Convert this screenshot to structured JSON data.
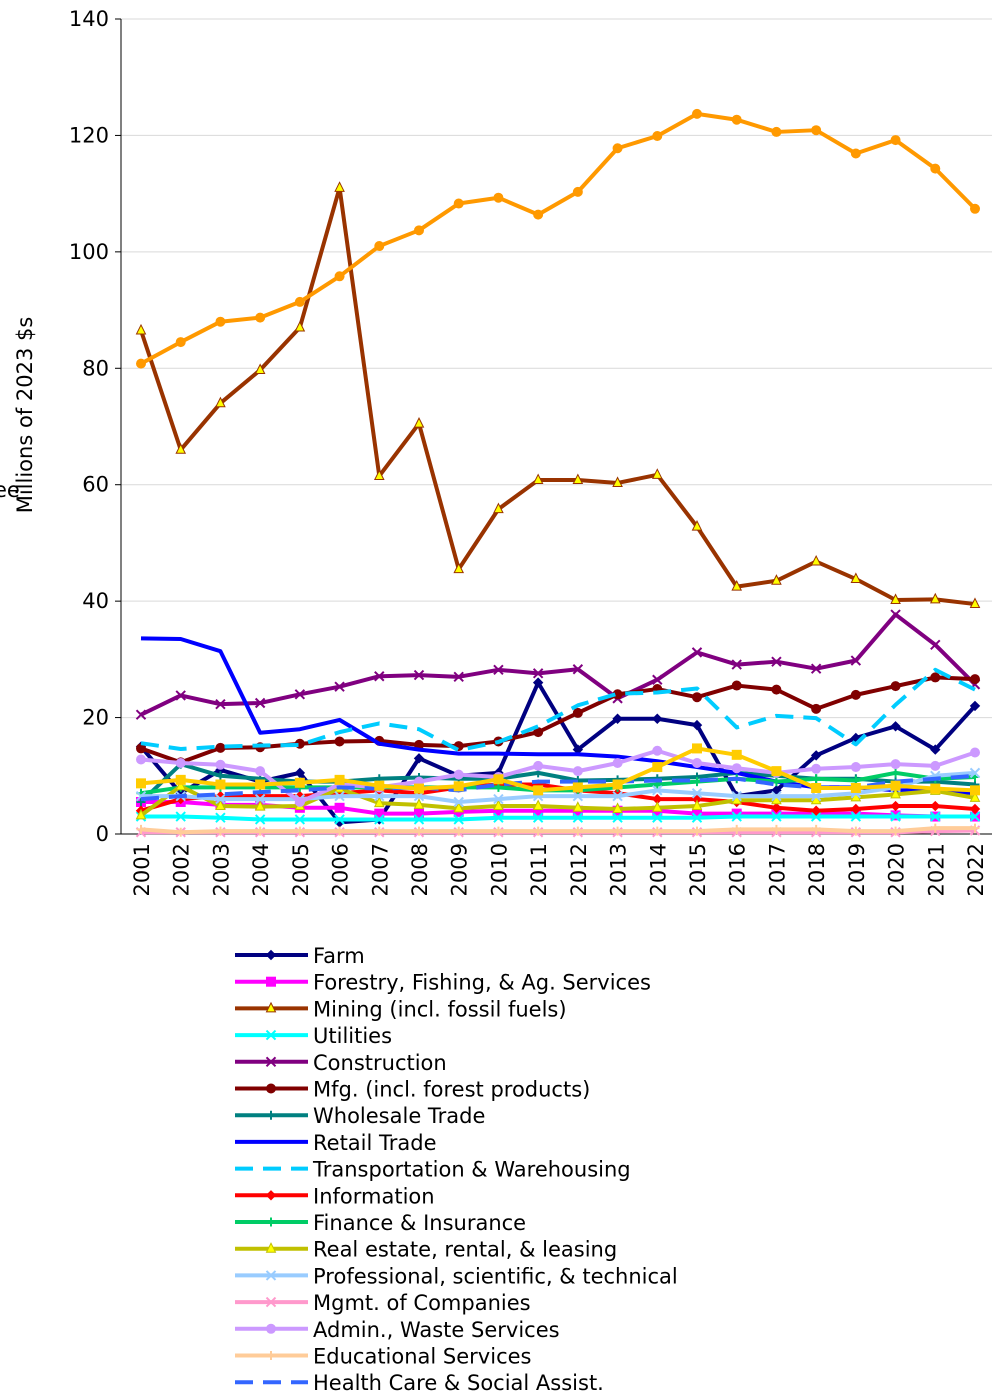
{
  "chart_data": {
    "type": "line",
    "y_label": "Millions of 2023 $s",
    "annotation": "ee",
    "categories": [
      "2001",
      "2002",
      "2003",
      "2004",
      "2005",
      "2006",
      "2007",
      "2008",
      "2009",
      "2010",
      "2011",
      "2012",
      "2013",
      "2014",
      "2015",
      "2016",
      "2017",
      "2018",
      "2019",
      "2020",
      "2021",
      "2022"
    ],
    "ylim": [
      0,
      140
    ],
    "yticks": [
      0,
      20,
      40,
      60,
      80,
      100,
      120,
      140
    ],
    "grid": true,
    "series": [
      {
        "name": "Farm",
        "color": "#000080",
        "marker": "diamond",
        "values": [
          15,
          7,
          11,
          9,
          10.5,
          2,
          2.5,
          13,
          10,
          10.5,
          26,
          14.5,
          19.8,
          19.8,
          18.7,
          6.5,
          7.5,
          13.5,
          16.5,
          18.5,
          14.5,
          22
        ]
      },
      {
        "name": "Forestry, Fishing, & Ag. Services",
        "color": "#ff00ff",
        "marker": "square",
        "values": [
          5.5,
          5.5,
          5,
          5,
          4.5,
          4.5,
          3.5,
          3.5,
          3.8,
          4,
          4,
          4,
          4,
          4,
          3.5,
          3.5,
          3.5,
          3.5,
          3.5,
          3.2,
          3,
          3
        ]
      },
      {
        "name": "Mining (incl. fossil fuels)",
        "color": "#993300",
        "marker": "triangle",
        "values": [
          86.5,
          66,
          74,
          79.7,
          87,
          111,
          61.5,
          70.5,
          45.5,
          55.8,
          60.8,
          60.8,
          60.3,
          61.7,
          52.8,
          42.5,
          43.5,
          46.8,
          43.8,
          40.2,
          40.3,
          39.5
        ]
      },
      {
        "name": "Utilities",
        "color": "#00ffff",
        "marker": "x",
        "values": [
          3,
          3,
          2.8,
          2.5,
          2.5,
          2.5,
          2.5,
          2.5,
          2.5,
          2.8,
          2.8,
          2.8,
          2.8,
          2.8,
          2.8,
          3,
          3,
          3,
          3,
          3,
          3,
          3
        ]
      },
      {
        "name": "Construction",
        "color": "#800080",
        "marker": "x",
        "values": [
          20.5,
          23.8,
          22.3,
          22.5,
          24,
          25.3,
          27.1,
          27.3,
          27,
          28.2,
          27.6,
          28.3,
          23.3,
          26.5,
          31.2,
          29.1,
          29.6,
          28.4,
          29.8,
          37.7,
          32.5,
          25.7
        ]
      },
      {
        "name": "Mfg. (incl. forest products)",
        "color": "#800000",
        "marker": "circle",
        "values": [
          14.7,
          12.3,
          14.8,
          14.9,
          15.5,
          15.9,
          16,
          15.3,
          15.1,
          15.9,
          17.5,
          20.8,
          24,
          24.9,
          23.5,
          25.5,
          24.8,
          21.5,
          23.9,
          25.4,
          26.9,
          26.6
        ]
      },
      {
        "name": "Wholesale Trade",
        "color": "#008080",
        "marker": "plus",
        "values": [
          5.5,
          12,
          10,
          9.5,
          9,
          9,
          9.5,
          9.7,
          9.5,
          9.5,
          10.5,
          9.2,
          9.3,
          9.5,
          9.8,
          10.5,
          10,
          9.5,
          9.5,
          9,
          9,
          8.5
        ]
      },
      {
        "name": "Retail Trade",
        "color": "#0000ff",
        "marker": "none",
        "values": [
          33.6,
          33.5,
          31.4,
          17.4,
          18,
          19.6,
          15.5,
          14.5,
          13.8,
          13.8,
          13.7,
          13.7,
          13.3,
          12.5,
          11.5,
          10.5,
          9,
          8,
          8,
          7.5,
          7.5,
          7
        ]
      },
      {
        "name": "Transportation & Warehousing",
        "color": "#00ccff",
        "marker": "none",
        "dash": true,
        "values": [
          15.6,
          14.6,
          15,
          15.2,
          15.3,
          17.5,
          19,
          18,
          14.4,
          15.8,
          18.5,
          22.1,
          24.1,
          24.3,
          25,
          18.3,
          20.3,
          19.9,
          15.4,
          22.2,
          28.2,
          24.8
        ]
      },
      {
        "name": "Information",
        "color": "#ff0000",
        "marker": "diamond",
        "values": [
          4,
          6,
          6.5,
          6.5,
          6.5,
          7,
          7.5,
          7,
          8,
          8.5,
          8.5,
          7.5,
          7,
          6,
          6,
          5.5,
          4.5,
          4,
          4.3,
          4.8,
          4.8,
          4.3
        ]
      },
      {
        "name": "Finance & Insurance",
        "color": "#00cc66",
        "marker": "plus",
        "values": [
          7,
          8,
          8,
          8,
          8,
          8,
          8,
          8,
          8,
          8,
          7.5,
          7.5,
          8,
          8.5,
          9,
          9.5,
          9,
          9.5,
          9.2,
          10.5,
          9.5,
          9.8
        ]
      },
      {
        "name": "Real estate, rental, & leasing",
        "color": "#c0c000",
        "marker": "triangle",
        "values": [
          3.2,
          8.2,
          4.8,
          4.7,
          4.8,
          7.8,
          5.3,
          5,
          4.4,
          4.8,
          4.8,
          4.5,
          4.3,
          4.5,
          4.8,
          5.8,
          5.8,
          5.8,
          6.3,
          6.8,
          7.4,
          6.2
        ]
      },
      {
        "name": "Professional, scientific, & technical",
        "color": "#99ccff",
        "marker": "x",
        "values": [
          6.5,
          6.5,
          6,
          6,
          6,
          6.5,
          6.5,
          6.5,
          5.5,
          6,
          6.5,
          6.5,
          6.5,
          7.5,
          7,
          6.5,
          6.5,
          6.5,
          7,
          8,
          10,
          10.5
        ]
      },
      {
        "name": "Mgmt. of Companies",
        "color": "#ff99cc",
        "marker": "x",
        "values": [
          0.3,
          0.3,
          0.3,
          0.3,
          0.3,
          0.3,
          0.3,
          0.3,
          0.3,
          0.3,
          0.3,
          0.3,
          0.3,
          0.3,
          0.3,
          0.3,
          0.3,
          0.3,
          0.3,
          0.3,
          0.5,
          0.6
        ]
      },
      {
        "name": "Admin., Waste Services",
        "color": "#cc99ff",
        "marker": "circle",
        "values": [
          12.8,
          12.2,
          11.9,
          10.8,
          5.5,
          8.5,
          8,
          9,
          10.2,
          9.8,
          11.7,
          10.8,
          12.2,
          14.3,
          12.2,
          11.3,
          10.5,
          11.2,
          11.5,
          12,
          11.7,
          14
        ]
      },
      {
        "name": "Educational Services",
        "color": "#ffcc99",
        "marker": "plus",
        "values": [
          0.8,
          0.3,
          0.5,
          0.5,
          0.5,
          0.5,
          0.5,
          0.5,
          0.5,
          0.5,
          0.5,
          0.5,
          0.5,
          0.5,
          0.5,
          0.8,
          0.8,
          0.8,
          0.5,
          0.5,
          1,
          1
        ]
      },
      {
        "name": "Health Care & Social Assist.",
        "color": "#3366ff",
        "marker": "none",
        "dash": true,
        "values": [
          6,
          6.5,
          6.8,
          7.2,
          7.5,
          8,
          7.8,
          8,
          7.5,
          8.5,
          9,
          9,
          9,
          9.2,
          9.2,
          9.5,
          8.5,
          8,
          8,
          9,
          9.5,
          10
        ]
      },
      {
        "color": "#ff9900",
        "marker": "circle",
        "values": [
          80.8,
          84.5,
          88,
          88.7,
          91.4,
          95.8,
          101,
          103.7,
          108.3,
          109.3,
          106.4,
          110.3,
          117.8,
          119.9,
          123.7,
          122.7,
          120.6,
          120.9,
          116.9,
          119.2,
          114.3,
          107.4
        ]
      },
      {
        "color": "#ffcc00",
        "marker": "square",
        "values": [
          8.7,
          9.3,
          8.5,
          8.5,
          8.8,
          9.3,
          8.3,
          7.8,
          8.2,
          9.4,
          7.5,
          8,
          8.5,
          11.5,
          14.7,
          13.6,
          10.8,
          7.9,
          7.9,
          8.3,
          7.8,
          7.5
        ]
      }
    ]
  }
}
